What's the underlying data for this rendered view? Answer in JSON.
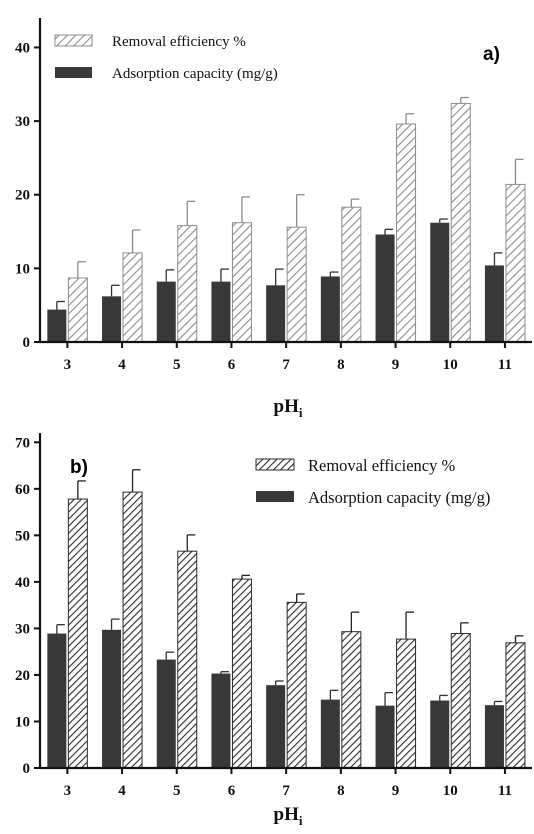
{
  "colors": {
    "capacity_fill": "#383838",
    "efficiency_hatch_a": "#8c8c8c",
    "efficiency_hatch_b": "#2b2b2b",
    "axis": "#111111"
  },
  "chart_data": [
    {
      "type": "bar",
      "panel_label": "a)",
      "xlabel": "pH",
      "xlabel_subscript": "i",
      "categories": [
        "3",
        "4",
        "5",
        "6",
        "7",
        "8",
        "9",
        "10",
        "11"
      ],
      "ylim": [
        0,
        44
      ],
      "yticks": [
        0,
        10,
        20,
        30,
        40
      ],
      "grid": false,
      "legend_position": "top-left",
      "series": [
        {
          "name": "Adsorption capacity (mg/g)",
          "style": "solid",
          "values": [
            4.4,
            6.2,
            8.2,
            8.2,
            7.7,
            8.9,
            14.6,
            16.2,
            10.4
          ],
          "errors": [
            1.1,
            1.5,
            1.6,
            1.7,
            2.2,
            0.6,
            0.7,
            0.5,
            1.7
          ]
        },
        {
          "name": "Removal efficiency %",
          "style": "hatched",
          "values": [
            8.7,
            12.1,
            15.8,
            16.2,
            15.6,
            18.3,
            29.6,
            32.4,
            21.4
          ],
          "errors": [
            2.2,
            3.1,
            3.3,
            3.5,
            4.4,
            1.1,
            1.4,
            0.8,
            3.4
          ]
        }
      ]
    },
    {
      "type": "bar",
      "panel_label": "b)",
      "xlabel": "pH",
      "xlabel_subscript": "i",
      "categories": [
        "3",
        "4",
        "5",
        "6",
        "7",
        "8",
        "9",
        "10",
        "11"
      ],
      "ylim": [
        0,
        72
      ],
      "yticks": [
        0,
        10,
        20,
        30,
        40,
        50,
        60,
        70
      ],
      "grid": false,
      "legend_position": "top-right",
      "series": [
        {
          "name": "Adsorption capacity (mg/g)",
          "style": "solid",
          "values": [
            28.9,
            29.7,
            23.3,
            20.3,
            17.8,
            14.7,
            13.4,
            14.5,
            13.5
          ],
          "errors": [
            1.9,
            2.3,
            1.6,
            0.4,
            0.9,
            2.0,
            2.8,
            1.1,
            0.8
          ]
        },
        {
          "name": "Removal efficiency %",
          "style": "hatched",
          "values": [
            57.8,
            59.3,
            46.6,
            40.6,
            35.6,
            29.3,
            27.7,
            28.9,
            26.9
          ],
          "errors": [
            3.9,
            4.8,
            3.5,
            0.8,
            1.8,
            4.2,
            5.8,
            2.3,
            1.5
          ]
        }
      ]
    }
  ]
}
